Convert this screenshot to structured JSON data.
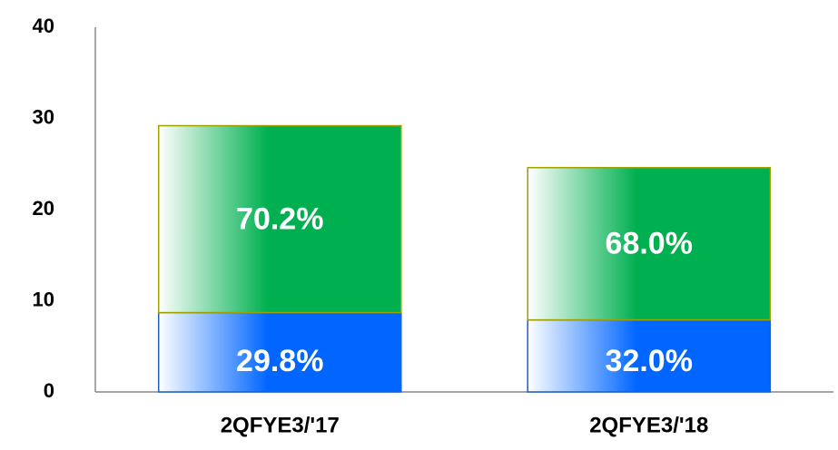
{
  "chart_data": {
    "type": "stacked_bar",
    "categories": [
      "2QFYE3/'17",
      "2QFYE3/'18"
    ],
    "series": [
      {
        "color": "#0066ff",
        "border": "#1f5fbf",
        "values": [
          8.7,
          7.9
        ],
        "percent_labels": [
          "29.8%",
          "32.0%"
        ]
      },
      {
        "color": "#00b050",
        "border": "#a0a000",
        "values": [
          20.5,
          16.7
        ],
        "percent_labels": [
          "70.2%",
          "68.0%"
        ]
      }
    ],
    "ylim": [
      0,
      40
    ],
    "yticks": [
      0,
      10,
      20,
      30,
      40
    ]
  }
}
